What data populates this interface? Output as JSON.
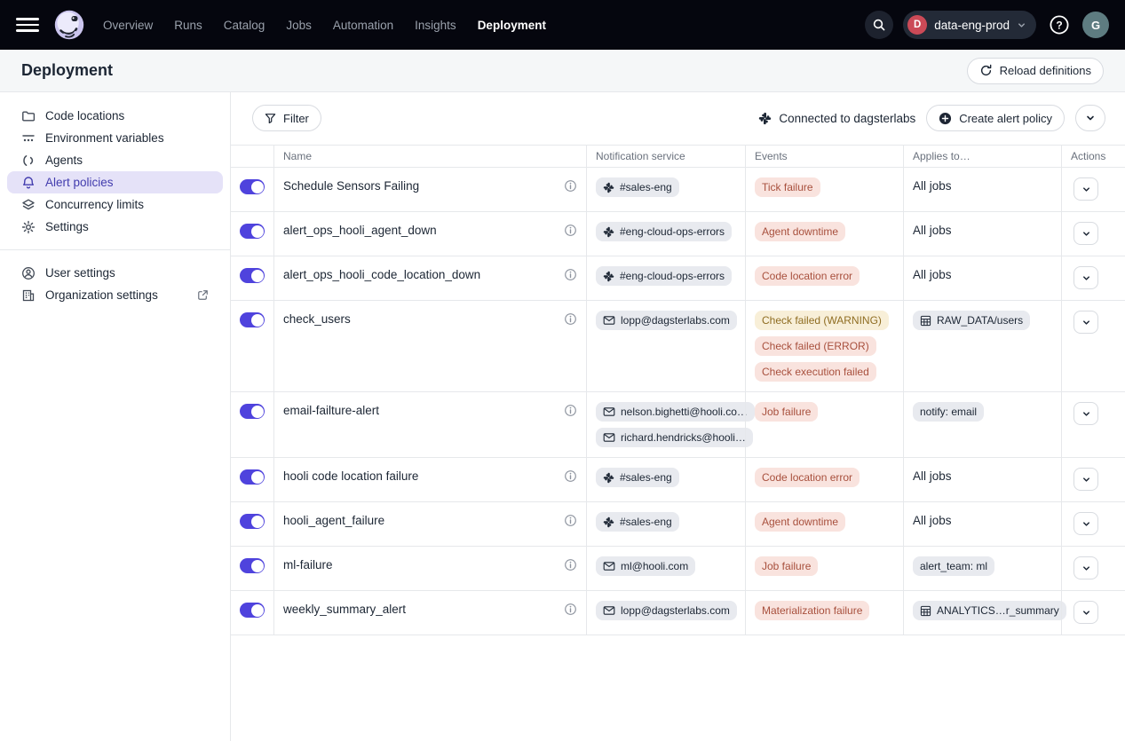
{
  "topnav": {
    "items": [
      {
        "label": "Overview",
        "active": false
      },
      {
        "label": "Runs",
        "active": false
      },
      {
        "label": "Catalog",
        "active": false
      },
      {
        "label": "Jobs",
        "active": false
      },
      {
        "label": "Automation",
        "active": false
      },
      {
        "label": "Insights",
        "active": false
      },
      {
        "label": "Deployment",
        "active": true
      }
    ],
    "switcher": {
      "initial": "D",
      "label": "data-eng-prod"
    },
    "avatar_initial": "G"
  },
  "page_header": {
    "title": "Deployment",
    "reload_button": "Reload definitions"
  },
  "sidebar": {
    "items": [
      {
        "icon": "folder",
        "label": "Code locations",
        "selected": false
      },
      {
        "icon": "env-vars",
        "label": "Environment variables",
        "selected": false
      },
      {
        "icon": "agents",
        "label": "Agents",
        "selected": false
      },
      {
        "icon": "bell",
        "label": "Alert policies",
        "selected": true
      },
      {
        "icon": "layers",
        "label": "Concurrency limits",
        "selected": false
      },
      {
        "icon": "gear",
        "label": "Settings",
        "selected": false
      }
    ],
    "footer_items": [
      {
        "icon": "user-circle",
        "label": "User settings",
        "external": false
      },
      {
        "icon": "org",
        "label": "Organization settings",
        "external": true
      }
    ]
  },
  "toolbar": {
    "filter_label": "Filter",
    "connection_status": "Connected to dagsterlabs",
    "create_button": "Create alert policy"
  },
  "table": {
    "columns": [
      "Name",
      "Notification service",
      "Events",
      "Applies to…",
      "Actions"
    ],
    "rows": [
      {
        "name": "Schedule Sensors Failing",
        "enabled": true,
        "notifications": [
          {
            "type": "slack",
            "label": "#sales-eng"
          }
        ],
        "events": [
          {
            "label": "Tick failure",
            "severity": "error"
          }
        ],
        "applies_to": {
          "type": "text",
          "label": "All jobs"
        }
      },
      {
        "name": "alert_ops_hooli_agent_down",
        "enabled": true,
        "notifications": [
          {
            "type": "slack",
            "label": "#eng-cloud-ops-errors"
          }
        ],
        "events": [
          {
            "label": "Agent downtime",
            "severity": "error"
          }
        ],
        "applies_to": {
          "type": "text",
          "label": "All jobs"
        }
      },
      {
        "name": "alert_ops_hooli_code_location_down",
        "enabled": true,
        "notifications": [
          {
            "type": "slack",
            "label": "#eng-cloud-ops-errors"
          }
        ],
        "events": [
          {
            "label": "Code location error",
            "severity": "error"
          }
        ],
        "applies_to": {
          "type": "text",
          "label": "All jobs"
        }
      },
      {
        "name": "check_users",
        "enabled": true,
        "notifications": [
          {
            "type": "email",
            "label": "lopp@dagsterlabs.com"
          }
        ],
        "events": [
          {
            "label": "Check failed (WARNING)",
            "severity": "warning"
          },
          {
            "label": "Check failed (ERROR)",
            "severity": "error"
          },
          {
            "label": "Check execution failed",
            "severity": "error"
          }
        ],
        "applies_to": {
          "type": "asset",
          "label": "RAW_DATA/users"
        }
      },
      {
        "name": "email-failture-alert",
        "enabled": true,
        "notifications": [
          {
            "type": "email",
            "label": "nelson.bighetti@hooli.co…"
          },
          {
            "type": "email",
            "label": "richard.hendricks@hooli…"
          }
        ],
        "events": [
          {
            "label": "Job failure",
            "severity": "error"
          }
        ],
        "applies_to": {
          "type": "tag",
          "label": "notify: email"
        }
      },
      {
        "name": "hooli code location failure",
        "enabled": true,
        "notifications": [
          {
            "type": "slack",
            "label": "#sales-eng"
          }
        ],
        "events": [
          {
            "label": "Code location error",
            "severity": "error"
          }
        ],
        "applies_to": {
          "type": "text",
          "label": "All jobs"
        }
      },
      {
        "name": "hooli_agent_failure",
        "enabled": true,
        "notifications": [
          {
            "type": "slack",
            "label": "#sales-eng"
          }
        ],
        "events": [
          {
            "label": "Agent downtime",
            "severity": "error"
          }
        ],
        "applies_to": {
          "type": "text",
          "label": "All jobs"
        }
      },
      {
        "name": "ml-failure",
        "enabled": true,
        "notifications": [
          {
            "type": "email",
            "label": "ml@hooli.com"
          }
        ],
        "events": [
          {
            "label": "Job failure",
            "severity": "error"
          }
        ],
        "applies_to": {
          "type": "tag",
          "label": "alert_team: ml"
        }
      },
      {
        "name": "weekly_summary_alert",
        "enabled": true,
        "notifications": [
          {
            "type": "email",
            "label": "lopp@dagsterlabs.com"
          }
        ],
        "events": [
          {
            "label": "Materialization failure",
            "severity": "error"
          }
        ],
        "applies_to": {
          "type": "asset",
          "label": "ANALYTICS…r_summary"
        }
      }
    ]
  },
  "colors": {
    "accent": "#4f43dd",
    "error-bg": "#f9e3de",
    "error-text": "#a8503d",
    "warn-bg": "#f8efd8",
    "warn-text": "#8f6d22",
    "tag-bg": "#e8eaef",
    "nav-bg": "#05060e",
    "avatar-bg": "#5e7c81",
    "switcher-dot": "#cb4a57"
  }
}
